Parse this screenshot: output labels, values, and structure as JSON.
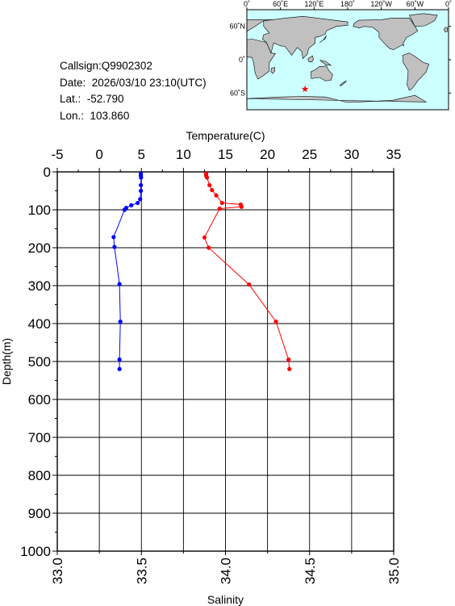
{
  "info": {
    "callsign": "Callsign:Q9902302",
    "date": "Date:  2026/03/10 23:10(UTC)",
    "lat": "Lat.:  -52.790",
    "lon": "Lon.:  103.860"
  },
  "map": {
    "top_ticks": [
      "0˚",
      "60˚E",
      "120˚E",
      "180˚",
      "120˚W",
      "60˚W",
      "0˚"
    ],
    "right_ticks": [
      "60˚N",
      "0˚",
      "60˚S"
    ],
    "station": {
      "lat": -52.79,
      "lon": 103.86
    },
    "colors": {
      "ocean": "#ccffff",
      "land": "#c0c0c0",
      "marker": "#ff0000"
    }
  },
  "chart_data": {
    "type": "line",
    "temp_axis": {
      "label": "Temperature(C)",
      "range": [
        -5,
        35
      ],
      "ticks": [
        "-5",
        "0",
        "5",
        "10",
        "15",
        "20",
        "25",
        "30",
        "35"
      ]
    },
    "sal_axis": {
      "label": "Salinity",
      "range": [
        33.0,
        35.0
      ],
      "ticks": [
        "33.0",
        "33.5",
        "34.0",
        "34.5",
        "35.0"
      ]
    },
    "depth_axis": {
      "label": "Depth(m)",
      "range": [
        0,
        1000
      ],
      "ticks": [
        "0",
        "100",
        "200",
        "300",
        "400",
        "500",
        "600",
        "700",
        "800",
        "900",
        "1000"
      ]
    },
    "grid": true,
    "series": [
      {
        "quantity": "temperature",
        "color": "#ff0000",
        "points": [
          [
            12.7,
            5
          ],
          [
            12.7,
            10
          ],
          [
            12.8,
            15
          ],
          [
            13.1,
            35
          ],
          [
            13.4,
            48
          ],
          [
            13.9,
            62
          ],
          [
            14.6,
            82
          ],
          [
            16.8,
            86
          ],
          [
            16.9,
            92
          ],
          [
            14.3,
            97
          ],
          [
            12.5,
            173
          ],
          [
            13.0,
            200
          ],
          [
            17.8,
            297
          ],
          [
            21.0,
            395
          ],
          [
            22.5,
            495
          ],
          [
            22.6,
            520
          ]
        ]
      },
      {
        "quantity": "salinity",
        "color": "#0000ff",
        "points": [
          [
            33.497,
            5
          ],
          [
            33.497,
            10
          ],
          [
            33.498,
            15
          ],
          [
            33.497,
            35
          ],
          [
            33.497,
            50
          ],
          [
            33.493,
            72
          ],
          [
            33.478,
            82
          ],
          [
            33.44,
            88
          ],
          [
            33.41,
            95
          ],
          [
            33.4,
            100
          ],
          [
            33.335,
            172
          ],
          [
            33.34,
            198
          ],
          [
            33.37,
            296
          ],
          [
            33.375,
            395
          ],
          [
            33.37,
            495
          ],
          [
            33.37,
            520
          ]
        ]
      }
    ]
  }
}
